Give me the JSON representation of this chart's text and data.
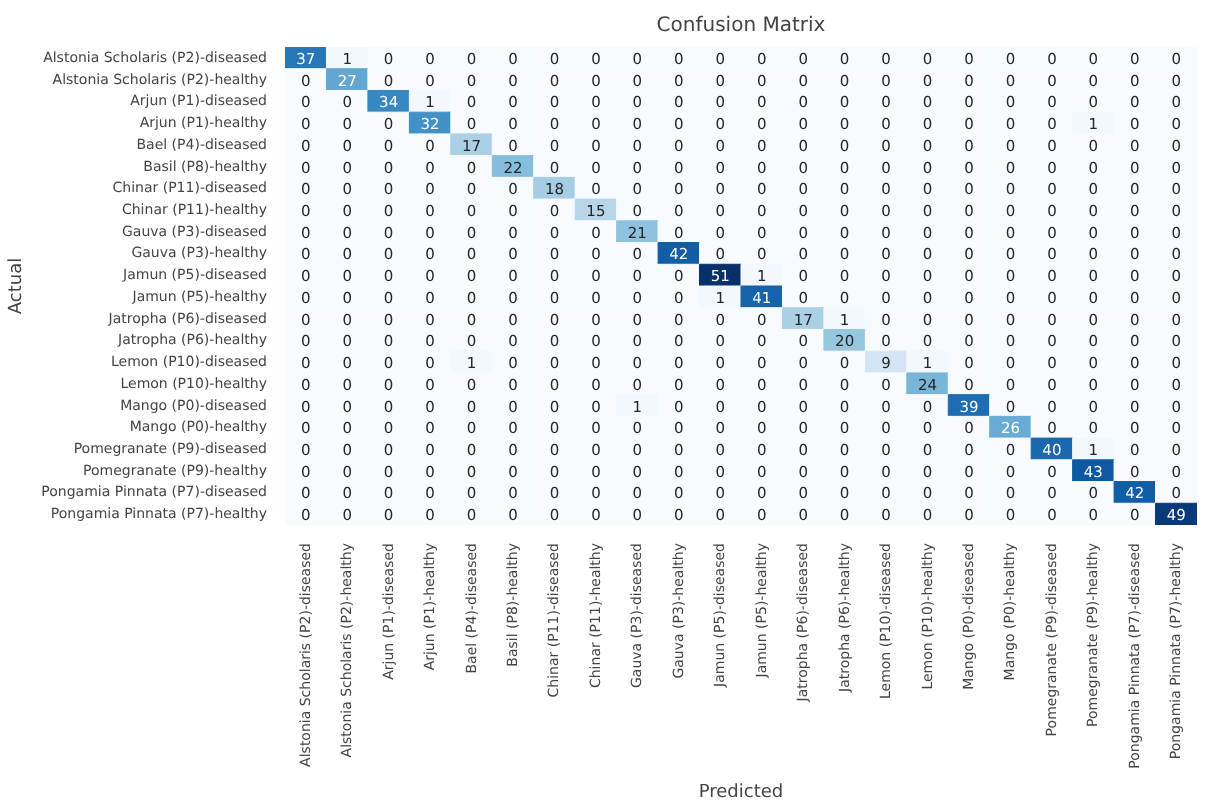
{
  "chart_data": {
    "type": "heatmap",
    "title": "Confusion Matrix",
    "xlabel": "Predicted",
    "ylabel": "Actual",
    "categories": [
      "Alstonia Scholaris (P2)-diseased",
      "Alstonia Scholaris (P2)-healthy",
      "Arjun (P1)-diseased",
      "Arjun (P1)-healthy",
      "Bael (P4)-diseased",
      "Basil (P8)-healthy",
      "Chinar (P11)-diseased",
      "Chinar (P11)-healthy",
      "Gauva (P3)-diseased",
      "Gauva (P3)-healthy",
      "Jamun (P5)-diseased",
      "Jamun (P5)-healthy",
      "Jatropha (P6)-diseased",
      "Jatropha (P6)-healthy",
      "Lemon (P10)-diseased",
      "Lemon (P10)-healthy",
      "Mango (P0)-diseased",
      "Mango (P0)-healthy",
      "Pomegranate (P9)-diseased",
      "Pomegranate (P9)-healthy",
      "Pongamia Pinnata (P7)-diseased",
      "Pongamia Pinnata (P7)-healthy"
    ],
    "y_categories": [
      "Alstonia Scholaris (P2)-diseased",
      "Alstonia Scholaris (P2)-healthy",
      "Arjun (P1)-diseased",
      "Arjun (P1)-healthy",
      "Bael (P4)-diseased",
      "Basil (P8)-healthy",
      "Chinar (P11)-diseased",
      "Chinar (P11)-healthy",
      "Gauva (P3)-diseased",
      "Gauva (P3)-healthy",
      "Jamun (P5)-diseased",
      "Jamun (P5)-healthy",
      "Jatropha (P6)-diseased",
      "Jatropha (P6)-healthy",
      "Lemon (P10)-diseased",
      "Lemon (P10)-healthy",
      "Mango (P0)-diseased",
      "Mango (P0)-healthy",
      "Pomegranate (P9)-diseased",
      "Pomegranate (P9)-healthy",
      "Pongamia Pinnata (P7)-diseased",
      "Pongamia Pinnata (P7)-healthy"
    ],
    "cells": [
      [
        37,
        1,
        0,
        0,
        0,
        0,
        0,
        0,
        0,
        0,
        0,
        0,
        0,
        0,
        0,
        0,
        0,
        0,
        0,
        0,
        0,
        0
      ],
      [
        0,
        27,
        0,
        0,
        0,
        0,
        0,
        0,
        0,
        0,
        0,
        0,
        0,
        0,
        0,
        0,
        0,
        0,
        0,
        0,
        0,
        0
      ],
      [
        0,
        0,
        34,
        1,
        0,
        0,
        0,
        0,
        0,
        0,
        0,
        0,
        0,
        0,
        0,
        0,
        0,
        0,
        0,
        0,
        0,
        0
      ],
      [
        0,
        0,
        0,
        32,
        0,
        0,
        0,
        0,
        0,
        0,
        0,
        0,
        0,
        0,
        0,
        0,
        0,
        0,
        0,
        1,
        0,
        0
      ],
      [
        0,
        0,
        0,
        0,
        17,
        0,
        0,
        0,
        0,
        0,
        0,
        0,
        0,
        0,
        0,
        0,
        0,
        0,
        0,
        0,
        0,
        0
      ],
      [
        0,
        0,
        0,
        0,
        0,
        22,
        0,
        0,
        0,
        0,
        0,
        0,
        0,
        0,
        0,
        0,
        0,
        0,
        0,
        0,
        0,
        0
      ],
      [
        0,
        0,
        0,
        0,
        0,
        0,
        18,
        0,
        0,
        0,
        0,
        0,
        0,
        0,
        0,
        0,
        0,
        0,
        0,
        0,
        0,
        0
      ],
      [
        0,
        0,
        0,
        0,
        0,
        0,
        0,
        15,
        0,
        0,
        0,
        0,
        0,
        0,
        0,
        0,
        0,
        0,
        0,
        0,
        0,
        0
      ],
      [
        0,
        0,
        0,
        0,
        0,
        0,
        0,
        0,
        21,
        0,
        0,
        0,
        0,
        0,
        0,
        0,
        0,
        0,
        0,
        0,
        0,
        0
      ],
      [
        0,
        0,
        0,
        0,
        0,
        0,
        0,
        0,
        0,
        42,
        0,
        0,
        0,
        0,
        0,
        0,
        0,
        0,
        0,
        0,
        0,
        0
      ],
      [
        0,
        0,
        0,
        0,
        0,
        0,
        0,
        0,
        0,
        0,
        51,
        1,
        0,
        0,
        0,
        0,
        0,
        0,
        0,
        0,
        0,
        0
      ],
      [
        0,
        0,
        0,
        0,
        0,
        0,
        0,
        0,
        0,
        0,
        1,
        41,
        0,
        0,
        0,
        0,
        0,
        0,
        0,
        0,
        0,
        0
      ],
      [
        0,
        0,
        0,
        0,
        0,
        0,
        0,
        0,
        0,
        0,
        0,
        0,
        17,
        1,
        0,
        0,
        0,
        0,
        0,
        0,
        0,
        0
      ],
      [
        0,
        0,
        0,
        0,
        0,
        0,
        0,
        0,
        0,
        0,
        0,
        0,
        0,
        20,
        0,
        0,
        0,
        0,
        0,
        0,
        0,
        0
      ],
      [
        0,
        0,
        0,
        0,
        1,
        0,
        0,
        0,
        0,
        0,
        0,
        0,
        0,
        0,
        9,
        1,
        0,
        0,
        0,
        0,
        0,
        0
      ],
      [
        0,
        0,
        0,
        0,
        0,
        0,
        0,
        0,
        0,
        0,
        0,
        0,
        0,
        0,
        0,
        24,
        0,
        0,
        0,
        0,
        0,
        0
      ],
      [
        0,
        0,
        0,
        0,
        0,
        0,
        0,
        0,
        1,
        0,
        0,
        0,
        0,
        0,
        0,
        0,
        39,
        0,
        0,
        0,
        0,
        0
      ],
      [
        0,
        0,
        0,
        0,
        0,
        0,
        0,
        0,
        0,
        0,
        0,
        0,
        0,
        0,
        0,
        0,
        0,
        26,
        0,
        0,
        0,
        0
      ],
      [
        0,
        0,
        0,
        0,
        0,
        0,
        0,
        0,
        0,
        0,
        0,
        0,
        0,
        0,
        0,
        0,
        0,
        0,
        40,
        1,
        0,
        0
      ],
      [
        0,
        0,
        0,
        0,
        0,
        0,
        0,
        0,
        0,
        0,
        0,
        0,
        0,
        0,
        0,
        0,
        0,
        0,
        0,
        43,
        0,
        0
      ],
      [
        0,
        0,
        0,
        0,
        0,
        0,
        0,
        0,
        0,
        0,
        0,
        0,
        0,
        0,
        0,
        0,
        0,
        0,
        0,
        0,
        42,
        0
      ],
      [
        0,
        0,
        0,
        0,
        0,
        0,
        0,
        0,
        0,
        0,
        0,
        0,
        0,
        0,
        0,
        0,
        0,
        0,
        0,
        0,
        0,
        49
      ]
    ],
    "data_labels": true
  }
}
